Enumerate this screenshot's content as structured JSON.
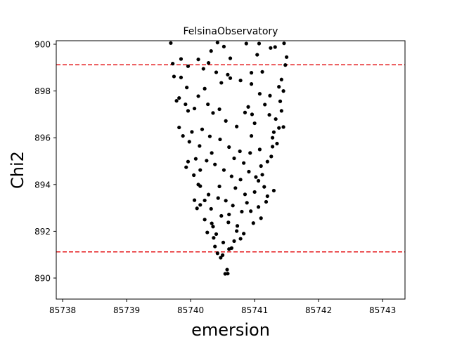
{
  "chart_data": {
    "type": "scatter",
    "title": "FelsinaObservatory",
    "xlabel": "emersion",
    "ylabel": "Chi2",
    "xlim": [
      85737.9,
      85743.35
    ],
    "ylim": [
      889.1,
      900.15
    ],
    "xticks": [
      85738,
      85739,
      85740,
      85741,
      85742,
      85743
    ],
    "yticks": [
      890,
      892,
      894,
      896,
      898,
      900
    ],
    "grid": false,
    "legend": "none",
    "point_color": "#000000",
    "hlines": [
      {
        "y": 899.12,
        "color": "#e41a1c",
        "style": "dashed"
      },
      {
        "y": 891.12,
        "color": "#e41a1c",
        "style": "dashed"
      }
    ],
    "points": [
      [
        85739.69,
        900.05
      ],
      [
        85739.85,
        899.37
      ],
      [
        85739.72,
        899.17
      ],
      [
        85739.96,
        899.06
      ],
      [
        85739.74,
        898.62
      ],
      [
        85739.85,
        898.58
      ],
      [
        85739.82,
        897.7
      ],
      [
        85739.92,
        897.43
      ],
      [
        85739.96,
        897.15
      ],
      [
        85739.82,
        896.44
      ],
      [
        85739.98,
        895.83
      ],
      [
        85739.96,
        894.98
      ],
      [
        85740.08,
        895.1
      ],
      [
        85740.15,
        894.62
      ],
      [
        85740.05,
        894.4
      ],
      [
        85740.15,
        893.93
      ],
      [
        85740.06,
        893.33
      ],
      [
        85740.15,
        893.13
      ],
      [
        85740.22,
        892.5
      ],
      [
        85740.33,
        892.34
      ],
      [
        85740.36,
        891.72
      ],
      [
        85740.38,
        891.35
      ],
      [
        85740.42,
        891.06
      ],
      [
        85740.5,
        890.98
      ],
      [
        85740.54,
        890.18
      ],
      [
        85740.57,
        890.36
      ],
      [
        85740.6,
        891.24
      ],
      [
        85740.68,
        891.58
      ],
      [
        85740.73,
        892.23
      ],
      [
        85740.8,
        892.84
      ],
      [
        85740.88,
        893.22
      ],
      [
        85740.94,
        892.86
      ],
      [
        85741.0,
        893.68
      ],
      [
        85741.06,
        894.16
      ],
      [
        85741.1,
        894.79
      ],
      [
        85741.2,
        894.98
      ],
      [
        85741.28,
        895.62
      ],
      [
        85741.3,
        896.24
      ],
      [
        85741.33,
        896.8
      ],
      [
        85741.42,
        897.15
      ],
      [
        85741.4,
        897.56
      ],
      [
        85741.45,
        898.0
      ],
      [
        85741.42,
        898.49
      ],
      [
        85741.48,
        899.11
      ],
      [
        85741.5,
        899.45
      ],
      [
        85741.46,
        900.04
      ],
      [
        85741.25,
        899.84
      ],
      [
        85741.07,
        900.03
      ],
      [
        85740.87,
        900.03
      ],
      [
        85740.52,
        899.9
      ],
      [
        85740.42,
        900.07
      ],
      [
        85740.32,
        899.71
      ],
      [
        85740.28,
        899.2
      ],
      [
        85740.4,
        898.8
      ],
      [
        85740.58,
        898.7
      ],
      [
        85740.62,
        898.55
      ],
      [
        85740.78,
        898.45
      ],
      [
        85740.95,
        898.3
      ],
      [
        85741.12,
        898.82
      ],
      [
        85740.22,
        898.1
      ],
      [
        85740.12,
        897.78
      ],
      [
        85740.27,
        897.43
      ],
      [
        85740.45,
        897.22
      ],
      [
        85740.55,
        896.72
      ],
      [
        85740.72,
        896.48
      ],
      [
        85740.85,
        897.08
      ],
      [
        85740.96,
        897.0
      ],
      [
        85741.16,
        897.42
      ],
      [
        85741.23,
        896.98
      ],
      [
        85741.38,
        896.42
      ],
      [
        85740.18,
        896.36
      ],
      [
        85740.3,
        896.06
      ],
      [
        85740.46,
        895.93
      ],
      [
        85740.6,
        895.6
      ],
      [
        85740.77,
        895.42
      ],
      [
        85740.93,
        895.35
      ],
      [
        85741.08,
        895.5
      ],
      [
        85741.26,
        895.2
      ],
      [
        85740.25,
        895.02
      ],
      [
        85740.38,
        894.86
      ],
      [
        85740.52,
        894.62
      ],
      [
        85740.64,
        894.35
      ],
      [
        85740.78,
        894.21
      ],
      [
        85740.91,
        894.55
      ],
      [
        85741.02,
        894.32
      ],
      [
        85741.15,
        893.9
      ],
      [
        85740.28,
        893.57
      ],
      [
        85740.43,
        893.42
      ],
      [
        85740.55,
        893.31
      ],
      [
        85740.66,
        893.1
      ],
      [
        85740.85,
        893.58
      ],
      [
        85741.06,
        893.04
      ],
      [
        85741.18,
        893.26
      ],
      [
        85741.3,
        893.74
      ],
      [
        85740.32,
        892.96
      ],
      [
        85740.48,
        892.66
      ],
      [
        85740.59,
        892.38
      ],
      [
        85740.72,
        892.01
      ],
      [
        85740.83,
        891.9
      ],
      [
        85740.98,
        892.35
      ],
      [
        85741.1,
        892.56
      ],
      [
        85740.4,
        891.88
      ],
      [
        85740.51,
        891.52
      ],
      [
        85740.64,
        891.28
      ],
      [
        85740.47,
        890.87
      ],
      [
        85740.58,
        890.19
      ],
      [
        85741.0,
        896.62
      ],
      [
        85740.9,
        897.32
      ],
      [
        85740.35,
        897.06
      ],
      [
        85739.88,
        896.08
      ],
      [
        85739.93,
        894.74
      ],
      [
        85740.12,
        894.0
      ],
      [
        85740.1,
        892.98
      ],
      [
        85740.26,
        891.95
      ],
      [
        85740.7,
        893.85
      ],
      [
        85741.2,
        893.5
      ],
      [
        85741.35,
        895.75
      ],
      [
        85741.45,
        896.46
      ],
      [
        85741.38,
        898.18
      ],
      [
        85740.12,
        899.35
      ],
      [
        85739.78,
        897.58
      ],
      [
        85740.02,
        896.25
      ],
      [
        85740.06,
        897.25
      ],
      [
        85740.2,
        898.95
      ],
      [
        85740.62,
        899.4
      ],
      [
        85740.95,
        898.78
      ],
      [
        85741.24,
        897.8
      ],
      [
        85741.28,
        896.0
      ],
      [
        85741.12,
        894.42
      ],
      [
        85740.83,
        894.92
      ],
      [
        85740.45,
        893.92
      ],
      [
        85740.22,
        893.32
      ],
      [
        85740.6,
        892.72
      ],
      [
        85740.78,
        891.68
      ],
      [
        85740.35,
        892.2
      ],
      [
        85741.32,
        899.88
      ],
      [
        85741.04,
        899.55
      ],
      [
        85739.94,
        898.15
      ],
      [
        85740.33,
        895.35
      ],
      [
        85740.14,
        895.65
      ],
      [
        85740.68,
        895.12
      ],
      [
        85740.95,
        896.08
      ],
      [
        85741.08,
        897.88
      ],
      [
        85740.48,
        898.35
      ]
    ]
  }
}
